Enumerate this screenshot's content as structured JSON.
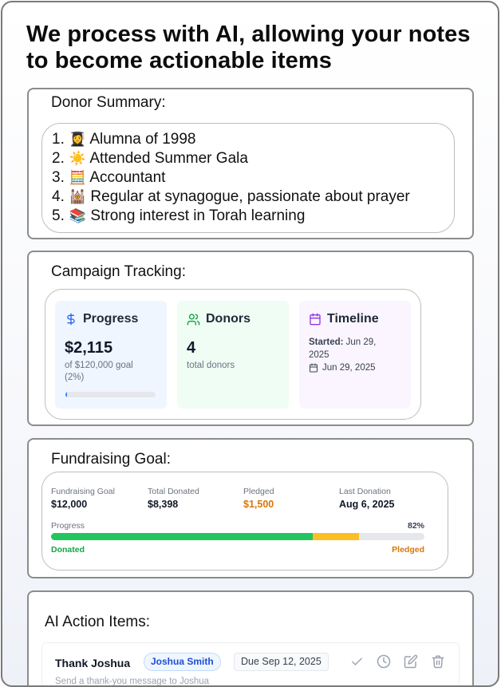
{
  "headline": "We process with AI, allowing your notes to become actionable items",
  "donor_summary": {
    "title": "Donor Summary:",
    "items": [
      {
        "num": "1.",
        "emoji": "👩‍🎓",
        "text": "Alumna of 1998"
      },
      {
        "num": "2.",
        "emoji": "☀️",
        "text": "Attended Summer Gala"
      },
      {
        "num": "3.",
        "emoji": "🧮",
        "text": "Accountant"
      },
      {
        "num": "4.",
        "emoji": "🕍",
        "text": "Regular at synagogue, passionate about prayer"
      },
      {
        "num": "5.",
        "emoji": "📚",
        "text": "Strong interest in Torah learning"
      }
    ]
  },
  "campaign": {
    "title": "Campaign Tracking:",
    "progress": {
      "label": "Progress",
      "amount": "$2,115",
      "detail": "of $120,000 goal (2%)",
      "fraction": 0.02,
      "color": "#3b82f6",
      "icon": "dollar-icon"
    },
    "donors": {
      "label": "Donors",
      "count": "4",
      "detail": "total donors",
      "icon": "users-icon"
    },
    "timeline": {
      "label": "Timeline",
      "started_label": "Started:",
      "started_value": "Jun 29, 2025",
      "date": "Jun 29, 2025",
      "icon": "calendar-icon"
    }
  },
  "fundraising": {
    "title": "Fundraising Goal:",
    "stats": [
      {
        "label": "Fundraising Goal",
        "value": "$12,000"
      },
      {
        "label": "Total Donated",
        "value": "$8,398"
      },
      {
        "label": "Pledged",
        "value": "$1,500"
      },
      {
        "label": "Last Donation",
        "value": "Aug 6, 2025"
      }
    ],
    "progress_label": "Progress",
    "percent": "82%",
    "donated_fraction": 0.7,
    "pledged_fraction": 0.125,
    "donated_label": "Donated",
    "pledged_label": "Pledged",
    "colors": {
      "donated": "#22c55e",
      "pledged": "#fbbf24"
    }
  },
  "ai_actions": {
    "title": "AI Action Items:",
    "items": [
      {
        "title": "Thank Joshua",
        "assignee": "Joshua Smith",
        "due": "Due Sep 12, 2025",
        "description": "Send a thank-you message to Joshua",
        "icons": [
          "check-icon",
          "clock-icon",
          "edit-icon",
          "trash-icon"
        ]
      }
    ]
  }
}
